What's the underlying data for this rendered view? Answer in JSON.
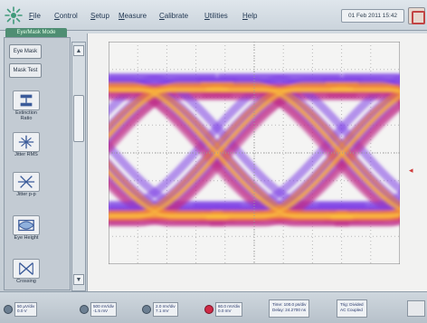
{
  "menubar": {
    "items": [
      {
        "label": "File"
      },
      {
        "label": "Control"
      },
      {
        "label": "Setup"
      },
      {
        "label": "Measure"
      },
      {
        "label": "Calibrate"
      },
      {
        "label": "Utilities"
      },
      {
        "label": "Help"
      }
    ],
    "datetime": "01 Feb 2011  15:42"
  },
  "mode_tab": "Eye/Mask Mode",
  "toolbar": {
    "run_button": "Eye Mask",
    "mask_button": "Mask Test",
    "tools": [
      {
        "label": "Extinction Ratio",
        "icon": "extinction-ratio-icon"
      },
      {
        "label": "Jitter RMS",
        "icon": "jitter-rms-icon"
      },
      {
        "label": "Jitter p-p",
        "icon": "jitter-pp-icon"
      },
      {
        "label": "Eye Height",
        "icon": "eye-height-icon"
      },
      {
        "label": "Crossing",
        "icon": "crossing-icon"
      }
    ]
  },
  "display": {
    "trace_colors": [
      "#7d3fe6",
      "#c02c89",
      "#e9474d",
      "#f6932f",
      "#ffd94a"
    ],
    "background": "#f2f2f1",
    "grid_color": "#b7b7b7",
    "ref_marker": "◂"
  },
  "statusbar": {
    "channels": [
      {
        "number": "1",
        "line1": "50 µV/div",
        "line2": "0.0 V",
        "active": false
      },
      {
        "number": "2",
        "line1": "500 mV/div",
        "line2": "-1.5 mV",
        "active": false
      },
      {
        "number": "3",
        "line1": "2.0 mV/div",
        "line2": "7.1 mV",
        "active": false
      },
      {
        "number": "4",
        "line1": "60.0 mV/div",
        "line2": "0.0 mV",
        "active": true
      }
    ],
    "time": {
      "line1": "Time: 100.0 ps/div",
      "line2": "Delay: 24.2700 ns"
    },
    "trigger": {
      "line1": "Trig: Divided",
      "line2": "AC Coupled"
    }
  }
}
